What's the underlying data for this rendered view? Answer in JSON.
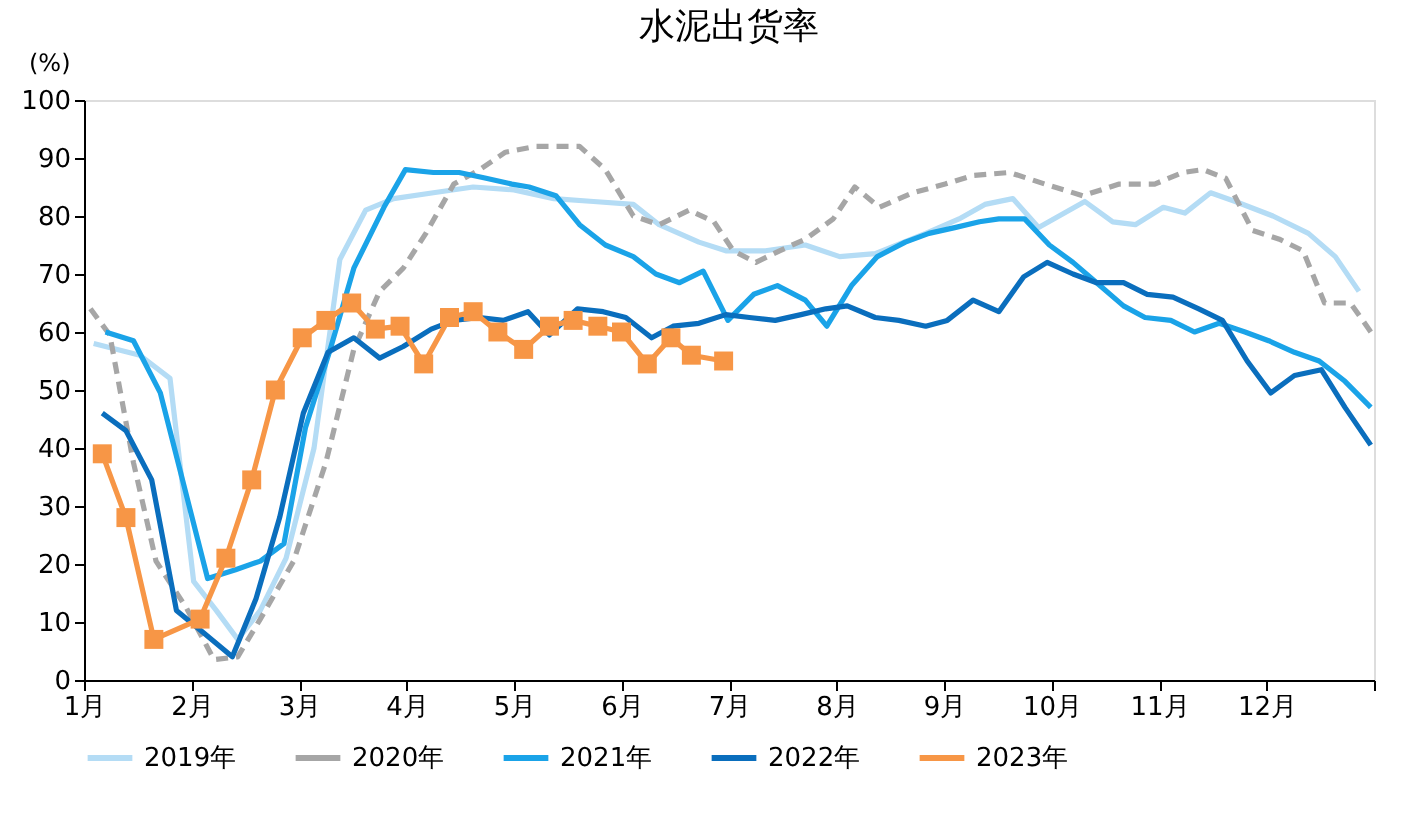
{
  "chart_data": {
    "type": "line",
    "title": "水泥出货率",
    "ylabel": "(%)",
    "xlim": [
      1,
      13
    ],
    "xticks": [
      {
        "value": 1,
        "label": "1月"
      },
      {
        "value": 2,
        "label": "2月"
      },
      {
        "value": 3,
        "label": "3月"
      },
      {
        "value": 4,
        "label": "4月"
      },
      {
        "value": 5,
        "label": "5月"
      },
      {
        "value": 6,
        "label": "6月"
      },
      {
        "value": 7,
        "label": "7月"
      },
      {
        "value": 8,
        "label": "8月"
      },
      {
        "value": 9,
        "label": "9月"
      },
      {
        "value": 10,
        "label": "10月"
      },
      {
        "value": 11,
        "label": "11月"
      },
      {
        "value": 12,
        "label": "12月"
      },
      {
        "value": 13,
        "label": null
      }
    ],
    "ylim": [
      0,
      100
    ],
    "yticks": [
      0,
      10,
      20,
      30,
      40,
      50,
      60,
      70,
      80,
      90,
      100
    ],
    "grid": false,
    "legend": "bottom",
    "marker": "none",
    "series": [
      {
        "name": "2019年",
        "color": "#b4dcf5",
        "line_style": "solid",
        "x": [
          1.09,
          1.52,
          1.8,
          2.02,
          2.23,
          2.43,
          2.64,
          2.88,
          3.14,
          3.38,
          3.62,
          3.88,
          4.25,
          4.62,
          5.0,
          5.37,
          5.74,
          6.11,
          6.35,
          6.72,
          6.97,
          7.34,
          7.71,
          8.03,
          8.36,
          8.83,
          9.14,
          9.38,
          9.64,
          9.88,
          10.31,
          10.57,
          10.78,
          11.04,
          11.24,
          11.48,
          11.71,
          12.06,
          12.39,
          12.64,
          12.86
        ],
        "values": [
          58,
          56,
          52,
          17,
          12,
          7,
          12,
          21,
          40,
          72.5,
          81,
          83,
          84,
          85,
          84.5,
          83,
          82.5,
          82,
          78.5,
          75.5,
          74,
          74,
          75,
          73,
          73.5,
          77,
          79.5,
          82,
          83,
          78,
          82.5,
          79,
          78.5,
          81.5,
          80.5,
          84,
          82.5,
          80,
          77,
          73,
          67
        ]
      },
      {
        "name": "2020年",
        "color": "#a6a6a6",
        "line_style": "dashed",
        "x": [
          1.06,
          1.24,
          1.46,
          1.67,
          1.95,
          2.21,
          2.43,
          2.64,
          2.95,
          3.25,
          3.51,
          3.75,
          3.97,
          4.18,
          4.44,
          4.68,
          4.92,
          5.2,
          5.61,
          5.85,
          6.11,
          6.35,
          6.63,
          6.86,
          7.04,
          7.25,
          7.47,
          7.71,
          7.97,
          8.17,
          8.4,
          8.71,
          9.01,
          9.27,
          9.61,
          9.94,
          10.29,
          10.63,
          10.96,
          11.22,
          11.41,
          11.62,
          11.87,
          12.12,
          12.34,
          12.54,
          12.78,
          12.99
        ],
        "values": [
          64,
          59.5,
          37.5,
          20.5,
          12.5,
          3.5,
          4,
          10.5,
          20.5,
          37.5,
          57,
          67,
          71,
          77,
          85.5,
          88,
          91,
          92,
          92,
          88,
          80,
          78.5,
          81,
          79,
          74,
          72,
          74,
          76,
          79.5,
          85,
          81.5,
          84,
          85.5,
          87,
          87.5,
          85.5,
          83.5,
          85.5,
          85.5,
          87.5,
          88,
          86.5,
          77.5,
          76,
          74,
          65,
          65,
          59.5
        ]
      },
      {
        "name": "2021年",
        "color": "#1aa3e8",
        "line_style": "solid",
        "x": [
          1.2,
          1.46,
          1.71,
          1.93,
          2.15,
          2.41,
          2.64,
          2.86,
          3.06,
          3.29,
          3.51,
          3.79,
          3.99,
          4.25,
          4.49,
          4.74,
          4.98,
          5.14,
          5.39,
          5.61,
          5.85,
          6.11,
          6.32,
          6.54,
          6.76,
          6.99,
          7.23,
          7.45,
          7.71,
          7.91,
          8.14,
          8.38,
          8.64,
          8.86,
          9.1,
          9.33,
          9.51,
          9.75,
          9.98,
          10.2,
          10.42,
          10.67,
          10.87,
          11.11,
          11.33,
          11.56,
          11.8,
          12.02,
          12.26,
          12.49,
          12.73,
          12.97
        ],
        "values": [
          60,
          58.5,
          49.5,
          33.5,
          17.5,
          19,
          20.5,
          23.5,
          43.5,
          57,
          71,
          81.5,
          88,
          87.5,
          87.5,
          86.5,
          85.5,
          85,
          83.5,
          78.5,
          75,
          73,
          70,
          68.5,
          70.5,
          62,
          66.5,
          68,
          65.5,
          61,
          68,
          73,
          75.5,
          77,
          78,
          79,
          79.5,
          79.5,
          75,
          72,
          68.5,
          64.5,
          62.5,
          62,
          60,
          61.5,
          60,
          58.5,
          56.5,
          55,
          51.5,
          47
        ]
      },
      {
        "name": "2022年",
        "color": "#0a6ebd",
        "line_style": "solid",
        "x": [
          1.17,
          1.39,
          1.63,
          1.86,
          2.12,
          2.38,
          2.6,
          2.82,
          3.04,
          3.27,
          3.51,
          3.75,
          3.97,
          4.23,
          4.44,
          4.68,
          4.9,
          5.13,
          5.33,
          5.59,
          5.83,
          6.04,
          6.28,
          6.48,
          6.72,
          6.97,
          7.19,
          7.43,
          7.67,
          7.9,
          8.1,
          8.36,
          8.58,
          8.83,
          9.03,
          9.27,
          9.51,
          9.74,
          9.96,
          10.2,
          10.42,
          10.67,
          10.89,
          11.13,
          11.37,
          11.59,
          11.82,
          12.04,
          12.26,
          12.51,
          12.73,
          12.97
        ],
        "values": [
          46,
          43,
          34.5,
          12,
          8,
          4,
          14,
          28,
          46,
          56.5,
          59,
          55.5,
          57.5,
          60.5,
          62,
          62.5,
          62,
          63.5,
          59.5,
          64,
          63.5,
          62.5,
          59,
          61,
          61.5,
          63,
          62.5,
          62,
          63,
          64,
          64.5,
          62.5,
          62,
          61,
          62,
          65.5,
          63.5,
          69.5,
          72,
          70,
          68.5,
          68.5,
          66.5,
          66,
          64,
          62,
          55,
          49.5,
          52.5,
          53.5,
          47,
          40.5
        ]
      },
      {
        "name": "2023年",
        "color": "#f79646",
        "line_style": "solid",
        "marker": "square",
        "x": [
          1.17,
          1.39,
          1.65,
          2.08,
          2.32,
          2.56,
          2.78,
          3.03,
          3.25,
          3.49,
          3.71,
          3.94,
          4.16,
          4.4,
          4.62,
          4.85,
          5.09,
          5.33,
          5.55,
          5.78,
          6.0,
          6.24,
          6.46,
          6.65,
          6.95
        ],
        "values": [
          39,
          28,
          7,
          10.5,
          21,
          34.5,
          50,
          59,
          62,
          65,
          60.5,
          61,
          54.5,
          62.5,
          63.5,
          60,
          57,
          61,
          62,
          61,
          60,
          54.5,
          59,
          56,
          55
        ]
      }
    ]
  }
}
